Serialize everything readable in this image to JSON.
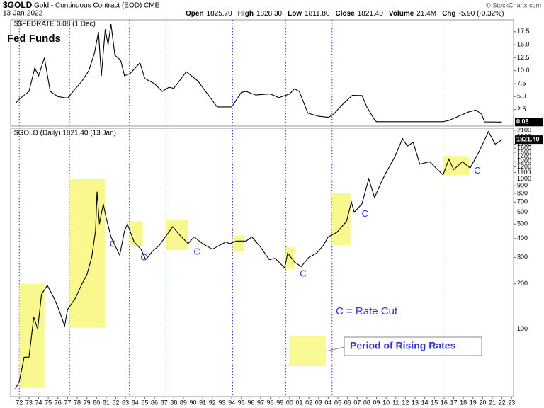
{
  "header": {
    "symbol": "$GOLD",
    "name": "Gold - Continuous Contract (EOD) CME",
    "date": "13-Jan-2022",
    "quote": [
      {
        "label": "Open",
        "value": "1825.70"
      },
      {
        "label": "High",
        "value": "1828.30"
      },
      {
        "label": "Low",
        "value": "1811.80"
      },
      {
        "label": "Close",
        "value": "1821.40"
      },
      {
        "label": "Volume",
        "value": "21.4M"
      },
      {
        "label": "Chg",
        "value": "-5.90 (-0.32%)"
      }
    ],
    "copyright": "© StockCharts.com"
  },
  "legend": {
    "cut": "C = Rate Cut",
    "rising_rates": "Period of Rising Rates"
  },
  "chart_data": [
    {
      "type": "line",
      "title": "$$FEDRATE 0.08 (1 Dec)",
      "label": "Fed Funds",
      "color": "#000000",
      "last_value_label": "0.08",
      "xlim": [
        1971.1,
        2023.2
      ],
      "ylim": [
        -0.7,
        19.8
      ],
      "yticks": [
        2.5,
        {
          "value": 5,
          "label": "5.0"
        },
        7.5,
        {
          "value": 10,
          "label": "10.0"
        },
        12.5,
        {
          "value": 15,
          "label": "15.0"
        },
        17.5
      ],
      "x": [
        1971.6,
        1972.0,
        1973.0,
        1973.6,
        1974.0,
        1974.6,
        1975.2,
        1976.0,
        1977.0,
        1977.8,
        1978.5,
        1979.2,
        1979.8,
        1980.2,
        1980.5,
        1980.9,
        1981.2,
        1981.5,
        1981.9,
        1982.5,
        1982.9,
        1983.5,
        1984.5,
        1985.0,
        1986.0,
        1986.8,
        1987.5,
        1988.0,
        1988.5,
        1989.3,
        1990.5,
        1991.5,
        1992.5,
        1993.5,
        1994.0,
        1995.0,
        1995.5,
        1996.5,
        1998.0,
        1998.9,
        2000.0,
        2000.5,
        2001.0,
        2001.9,
        2003.0,
        2004.0,
        2004.5,
        2005.5,
        2006.5,
        2007.5,
        2008.0,
        2008.8,
        2009.0,
        2015.9,
        2016.5,
        2017.5,
        2018.5,
        2019.3,
        2019.9,
        2020.2,
        2022.0
      ],
      "values": [
        3.7,
        4.5,
        6,
        10.5,
        9,
        12.5,
        6,
        5,
        4.7,
        6.5,
        8,
        10,
        13.5,
        17.5,
        9,
        18,
        15,
        19,
        13,
        12,
        9,
        9.5,
        11.5,
        8.5,
        7.5,
        6,
        6.8,
        6.6,
        7.8,
        9.8,
        8,
        5.5,
        3,
        3,
        3,
        5.8,
        6,
        5.3,
        5.5,
        4.8,
        5.5,
        6.5,
        6,
        1.8,
        1.2,
        1,
        1.5,
        3.5,
        5.25,
        5.2,
        3,
        0.5,
        0.15,
        0.15,
        0.4,
        1.2,
        2,
        2.4,
        1.6,
        0.1,
        0.08
      ]
    },
    {
      "type": "line",
      "title": "$GOLD (Daily) 1821.40 (13 Jan)",
      "color": "#000000",
      "log_scale": true,
      "last_value_label": "1821.40",
      "xlim": [
        1971.1,
        2023.2
      ],
      "ylim": [
        35.5,
        2170
      ],
      "yticks": [
        100,
        200,
        300,
        400,
        500,
        600,
        700,
        800,
        900,
        1000,
        1100,
        1200,
        1300,
        1400,
        1500,
        1600,
        1700,
        1900,
        2100
      ],
      "xticks": [
        {
          "value": 1972,
          "label": "72"
        },
        {
          "value": 1973,
          "label": "73"
        },
        {
          "value": 1974,
          "label": "74"
        },
        {
          "value": 1975,
          "label": "75"
        },
        {
          "value": 1976,
          "label": "76"
        },
        {
          "value": 1977,
          "label": "77"
        },
        {
          "value": 1978,
          "label": "78"
        },
        {
          "value": 1979,
          "label": "79"
        },
        {
          "value": 1980,
          "label": "80"
        },
        {
          "value": 1981,
          "label": "81"
        },
        {
          "value": 1982,
          "label": "82"
        },
        {
          "value": 1983,
          "label": "83"
        },
        {
          "value": 1984,
          "label": "84"
        },
        {
          "value": 1985,
          "label": "85"
        },
        {
          "value": 1986,
          "label": "86"
        },
        {
          "value": 1987,
          "label": "87"
        },
        {
          "value": 1988,
          "label": "88"
        },
        {
          "value": 1989,
          "label": "89"
        },
        {
          "value": 1990,
          "label": "90"
        },
        {
          "value": 1991,
          "label": "91"
        },
        {
          "value": 1992,
          "label": "92"
        },
        {
          "value": 1993,
          "label": "93"
        },
        {
          "value": 1994,
          "label": "94"
        },
        {
          "value": 1995,
          "label": "95"
        },
        {
          "value": 1996,
          "label": "96"
        },
        {
          "value": 1997,
          "label": "97"
        },
        {
          "value": 1998,
          "label": "98"
        },
        {
          "value": 1999,
          "label": "99"
        },
        {
          "value": 2000,
          "label": "00"
        },
        {
          "value": 2001,
          "label": "01"
        },
        {
          "value": 2002,
          "label": "02"
        },
        {
          "value": 2003,
          "label": "03"
        },
        {
          "value": 2004,
          "label": "04"
        },
        {
          "value": 2005,
          "label": "05"
        },
        {
          "value": 2006,
          "label": "06"
        },
        {
          "value": 2007,
          "label": "07"
        },
        {
          "value": 2008,
          "label": "08"
        },
        {
          "value": 2009,
          "label": "09"
        },
        {
          "value": 2010,
          "label": "10"
        },
        {
          "value": 2011,
          "label": "11"
        },
        {
          "value": 2012,
          "label": "12"
        },
        {
          "value": 2013,
          "label": "13"
        },
        {
          "value": 2014,
          "label": "14"
        },
        {
          "value": 2015,
          "label": "15"
        },
        {
          "value": 2016,
          "label": "16"
        },
        {
          "value": 2017,
          "label": "17"
        },
        {
          "value": 2018,
          "label": "18"
        },
        {
          "value": 2019,
          "label": "19"
        },
        {
          "value": 2020,
          "label": "20"
        },
        {
          "value": 2021,
          "label": "21"
        },
        {
          "value": 2022,
          "label": "22"
        },
        {
          "value": 2023,
          "label": "23"
        }
      ],
      "x": [
        1971.6,
        1972.0,
        1972.5,
        1973.0,
        1973.5,
        1973.9,
        1974.3,
        1974.9,
        1975.5,
        1976.0,
        1976.7,
        1977.0,
        1977.8,
        1978.5,
        1979.0,
        1979.5,
        1979.9,
        1980.05,
        1980.3,
        1980.7,
        1981.0,
        1981.5,
        1982.4,
        1982.9,
        1983.2,
        1983.9,
        1984.6,
        1985.1,
        1985.8,
        1986.5,
        1987.0,
        1987.9,
        1988.5,
        1989.5,
        1990.1,
        1991.0,
        1992.0,
        1993.4,
        1993.8,
        1994.5,
        1995.5,
        1996.1,
        1997.0,
        1997.9,
        1998.5,
        1999.5,
        1999.8,
        2000.5,
        2001.2,
        2002.0,
        2002.8,
        2003.5,
        2004.0,
        2004.9,
        2005.9,
        2006.4,
        2006.7,
        2007.5,
        2008.2,
        2008.8,
        2009.5,
        2010.0,
        2010.9,
        2011.7,
        2012.2,
        2012.8,
        2013.5,
        2014.5,
        2015.9,
        2016.5,
        2017.0,
        2017.9,
        2018.7,
        2019.6,
        2020.6,
        2021.0,
        2021.3,
        2021.9,
        2022.03
      ],
      "values": [
        40,
        45,
        65,
        65,
        120,
        100,
        170,
        195,
        165,
        140,
        105,
        135,
        160,
        200,
        230,
        300,
        450,
        820,
        500,
        680,
        550,
        410,
        310,
        450,
        500,
        380,
        340,
        290,
        330,
        360,
        400,
        480,
        430,
        370,
        410,
        370,
        340,
        380,
        370,
        385,
        385,
        410,
        350,
        290,
        295,
        255,
        320,
        280,
        260,
        300,
        320,
        360,
        410,
        440,
        520,
        700,
        600,
        680,
        1000,
        750,
        950,
        1100,
        1400,
        1850,
        1650,
        1750,
        1250,
        1300,
        1060,
        1350,
        1150,
        1300,
        1180,
        1500,
        2060,
        1850,
        1700,
        1800,
        1821.4
      ],
      "periods": [
        {
          "start": 1972.0,
          "end": 1974.6,
          "low": 40.5,
          "high": 200
        },
        {
          "start": 1977.2,
          "end": 1980.9,
          "low": 102,
          "high": 1000
        },
        {
          "start": 1983.4,
          "end": 1984.8,
          "low": 358,
          "high": 520
        },
        {
          "start": 1987.2,
          "end": 1989.5,
          "low": 336,
          "high": 530
        },
        {
          "start": 1994.1,
          "end": 1995.3,
          "low": 329,
          "high": 418
        },
        {
          "start": 1999.6,
          "end": 2000.5,
          "low": 250,
          "high": 351
        },
        {
          "start": 2004.4,
          "end": 2006.3,
          "low": 362,
          "high": 804
        },
        {
          "start": 2015.9,
          "end": 2018.6,
          "low": 1057,
          "high": 1419
        }
      ],
      "period_color": "#f7f77a",
      "rate_events": [
        {
          "x": 1972.0,
          "color": "#3333cc"
        },
        {
          "x": 1977.2,
          "color": "#3333cc"
        },
        {
          "x": 1983.4,
          "color": "#cc3333"
        },
        {
          "x": 1987.2,
          "color": "#cc3333"
        },
        {
          "x": 1994.1,
          "color": "#3333cc"
        },
        {
          "x": 1999.6,
          "color": "#3333cc"
        },
        {
          "x": 2004.4,
          "color": "#3333cc"
        },
        {
          "x": 2015.9,
          "color": "#3333cc"
        }
      ],
      "annotations": [
        {
          "text": "C",
          "x": 1981.7,
          "y": 366
        },
        {
          "text": "C",
          "x": 1984.9,
          "y": 298
        },
        {
          "text": "C",
          "x": 1990.4,
          "y": 325
        },
        {
          "text": "C",
          "x": 2001.4,
          "y": 232
        },
        {
          "text": "C",
          "x": 2007.8,
          "y": 579
        },
        {
          "text": "C",
          "x": 2019.45,
          "y": 1127
        }
      ],
      "annotation_color": "#3333cc"
    }
  ]
}
